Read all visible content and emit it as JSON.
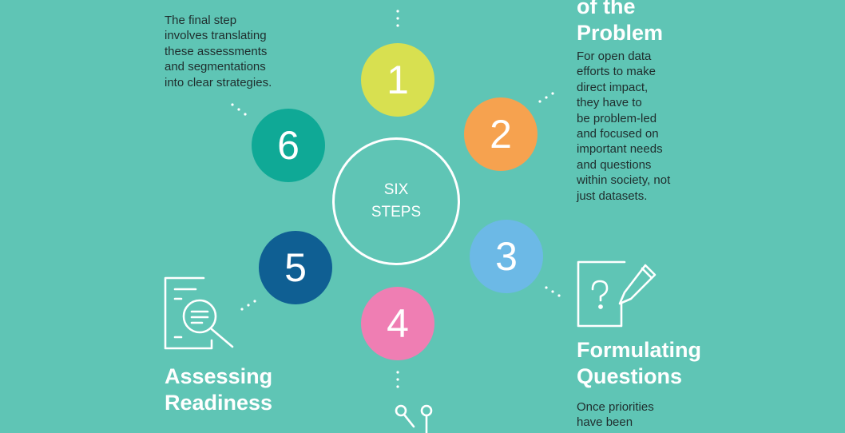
{
  "center": {
    "line1": "SIX",
    "line2": "STEPS"
  },
  "steps": [
    {
      "number": "1",
      "color": "#d8e050"
    },
    {
      "number": "2",
      "color": "#f6a24f"
    },
    {
      "number": "3",
      "color": "#6cb9e6"
    },
    {
      "number": "4",
      "color": "#ef7eb3"
    },
    {
      "number": "5",
      "color": "#0f5f93"
    },
    {
      "number": "6",
      "color": "#0fa996"
    }
  ],
  "step2": {
    "heading": "of the\nProblem",
    "body": "For open data\nefforts to make\ndirect impact,\nthey have to\nbe problem-led\nand focused on\nimportant needs\nand questions\nwithin society, not\njust datasets."
  },
  "step3": {
    "heading": "Formulating\nQuestions",
    "body": "Once priorities\nhave been",
    "icon": "question-pen-icon"
  },
  "step5": {
    "heading": "Assessing\nReadiness",
    "icon": "document-magnifier-icon"
  },
  "step6": {
    "body": "The final step\ninvolves translating\nthese assessments\nand segmentations\ninto clear strategies."
  },
  "step4": {
    "icon": "network-nodes-icon"
  }
}
